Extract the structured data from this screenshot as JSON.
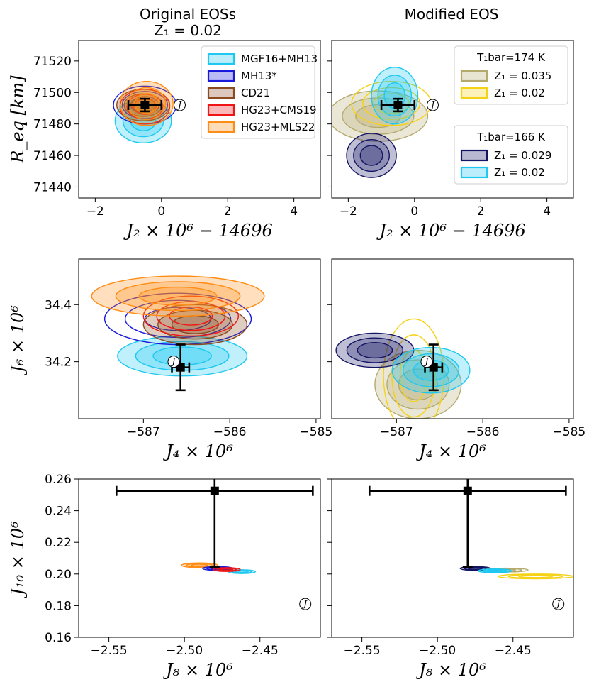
{
  "column_titles": {
    "left": "Original EOSs",
    "left_sub": "Z₁ = 0.02",
    "right": "Modified EOS"
  },
  "jupiter_symbol": "J",
  "chart_data": [
    {
      "type": "contour",
      "panel": "top-left",
      "xlabel": "J₂ × 10⁶ − 14696",
      "ylabel": "R_eq [km]",
      "xlim": [
        -2.5,
        4.8
      ],
      "ylim": [
        71433,
        71533
      ],
      "xticks": [
        -2,
        0,
        2,
        4
      ],
      "xtick_labels": [
        "−2",
        "0",
        "2",
        "4"
      ],
      "yticks": [
        71440,
        71460,
        71480,
        71500,
        71520
      ],
      "ytick_labels": [
        "71440",
        "71460",
        "71480",
        "71500",
        "71520"
      ],
      "observation": {
        "x": -0.5,
        "y": 71492,
        "xerr": 0.5,
        "yerr": 4
      },
      "jupiter_marker": {
        "x": 0.55,
        "y": 71492
      },
      "legend": {
        "title": "",
        "position": "top-right",
        "entries": [
          {
            "label": "MGF16+MH13",
            "color": "#1ec8f0"
          },
          {
            "label": "MH13*",
            "color": "#1a1adc"
          },
          {
            "label": "CD21",
            "color": "#8b4a20"
          },
          {
            "label": "HG23+CMS19",
            "color": "#f01414"
          },
          {
            "label": "HG23+MLS22",
            "color": "#ff8c14"
          }
        ]
      },
      "series": [
        {
          "name": "MGF16+MH13",
          "color": "#1ec8f0",
          "fill": true,
          "center": [
            -0.55,
            71482
          ],
          "spread": [
            0.85,
            14
          ]
        },
        {
          "name": "MH13*",
          "color": "#1a1adc",
          "fill": false,
          "center": [
            -0.5,
            71492
          ],
          "spread": [
            0.95,
            12
          ]
        },
        {
          "name": "CD21",
          "color": "#8b4a20",
          "fill": true,
          "center": [
            -0.55,
            71492
          ],
          "spread": [
            0.8,
            10
          ]
        },
        {
          "name": "HG23+CMS19",
          "color": "#f01414",
          "fill": false,
          "center": [
            -0.5,
            71491
          ],
          "spread": [
            0.75,
            11
          ]
        },
        {
          "name": "HG23+MLS22",
          "color": "#ff8c14",
          "fill": true,
          "center": [
            -0.45,
            71493
          ],
          "spread": [
            0.8,
            14
          ]
        }
      ]
    },
    {
      "type": "contour",
      "panel": "top-right",
      "xlabel": "J₂ × 10⁶ − 14696",
      "ylabel": "",
      "xlim": [
        -2.5,
        4.8
      ],
      "ylim": [
        71433,
        71533
      ],
      "xticks": [
        -2,
        0,
        2,
        4
      ],
      "xtick_labels": [
        "−2",
        "0",
        "2",
        "4"
      ],
      "observation": {
        "x": -0.5,
        "y": 71492,
        "xerr": 0.5,
        "yerr": 4
      },
      "jupiter_marker": {
        "x": 0.55,
        "y": 71492
      },
      "legends": [
        {
          "title": "T₁bar=174 K",
          "position": "top-right",
          "entries": [
            {
              "label": "Z₁ = 0.035",
              "color": "#b4aa6e"
            },
            {
              "label": "Z₁ = 0.02",
              "color": "#f5d214"
            }
          ]
        },
        {
          "title": "T₁bar=166 K",
          "position": "center-right",
          "entries": [
            {
              "label": "Z₁ = 0.029",
              "color": "#141464"
            },
            {
              "label": "Z₁ = 0.02",
              "color": "#1ec8f0"
            }
          ]
        }
      ],
      "series": [
        {
          "name": "Z₁ = 0.035 (174 K)",
          "color": "#b4aa6e",
          "fill": true,
          "center": [
            -1.1,
            71485
          ],
          "spread": [
            1.5,
            16
          ]
        },
        {
          "name": "Z₁ = 0.02 (174 K)",
          "color": "#f5d214",
          "fill": false,
          "center": [
            -0.7,
            71493
          ],
          "spread": [
            1.2,
            14
          ]
        },
        {
          "name": "Z₁ = 0.029 (166 K)",
          "color": "#141464",
          "fill": true,
          "center": [
            -1.3,
            71460
          ],
          "spread": [
            0.75,
            14
          ]
        },
        {
          "name": "Z₁ = 0.02 (166 K)",
          "color": "#1ec8f0",
          "fill": true,
          "center": [
            -0.6,
            71498
          ],
          "spread": [
            0.7,
            18
          ]
        }
      ]
    },
    {
      "type": "contour",
      "panel": "middle-left",
      "xlabel": "J₄ × 10⁶",
      "ylabel": "J₆ × 10⁶",
      "xlim": [
        -587.75,
        -584.95
      ],
      "ylim": [
        34.0,
        34.56
      ],
      "xticks": [
        -587,
        -586,
        -585
      ],
      "xtick_labels": [
        "−587",
        "−586",
        "−585"
      ],
      "yticks": [
        34.2,
        34.4
      ],
      "ytick_labels": [
        "34.2",
        "34.4"
      ],
      "observation": {
        "x": -586.57,
        "y": 34.18,
        "xerr": 0.1,
        "yerr": 0.08
      },
      "jupiter_marker": {
        "x": -586.65,
        "y": 34.2
      },
      "series": [
        {
          "name": "MGF16+MH13",
          "color": "#1ec8f0",
          "fill": true,
          "center": [
            -586.55,
            34.22
          ],
          "spread": [
            0.75,
            0.07
          ]
        },
        {
          "name": "MH13*",
          "color": "#1a1adc",
          "fill": false,
          "center": [
            -586.6,
            34.35
          ],
          "spread": [
            0.85,
            0.09
          ]
        },
        {
          "name": "CD21",
          "color": "#8b4a20",
          "fill": true,
          "center": [
            -586.4,
            34.33
          ],
          "spread": [
            0.6,
            0.07
          ]
        },
        {
          "name": "HG23+CMS19",
          "color": "#f01414",
          "fill": false,
          "center": [
            -586.45,
            34.36
          ],
          "spread": [
            0.55,
            0.07
          ]
        },
        {
          "name": "HG23+MLS22",
          "color": "#ff8c14",
          "fill": true,
          "center": [
            -586.6,
            34.43
          ],
          "spread": [
            1.0,
            0.07
          ]
        }
      ]
    },
    {
      "type": "contour",
      "panel": "middle-right",
      "xlabel": "J₄ × 10⁶",
      "ylabel": "",
      "xlim": [
        -587.75,
        -584.95
      ],
      "ylim": [
        34.0,
        34.56
      ],
      "xticks": [
        -587,
        -586,
        -585
      ],
      "xtick_labels": [
        "−587",
        "−586",
        "−585"
      ],
      "observation": {
        "x": -586.57,
        "y": 34.18,
        "xerr": 0.1,
        "yerr": 0.08
      },
      "jupiter_marker": {
        "x": -586.65,
        "y": 34.2
      },
      "series": [
        {
          "name": "Z₁ = 0.035 (174 K)",
          "color": "#b4aa6e",
          "fill": true,
          "center": [
            -586.75,
            34.12
          ],
          "spread": [
            0.5,
            0.12
          ]
        },
        {
          "name": "Z₁ = 0.02 (174 K)",
          "color": "#f5d214",
          "fill": false,
          "center": [
            -586.8,
            34.15
          ],
          "spread": [
            0.35,
            0.2
          ]
        },
        {
          "name": "Z₁ = 0.029 (166 K)",
          "color": "#141464",
          "fill": true,
          "center": [
            -587.25,
            34.24
          ],
          "spread": [
            0.45,
            0.06
          ]
        },
        {
          "name": "Z₁ = 0.02 (166 K)",
          "color": "#1ec8f0",
          "fill": true,
          "center": [
            -586.6,
            34.17
          ],
          "spread": [
            0.45,
            0.08
          ]
        }
      ]
    },
    {
      "type": "contour",
      "panel": "bottom-left",
      "xlabel": "J₈ × 10⁶",
      "ylabel": "J₁₀ × 10⁶",
      "xlim": [
        -2.57,
        -2.41
      ],
      "ylim": [
        0.16,
        0.26
      ],
      "xticks": [
        -2.55,
        -2.5,
        -2.45
      ],
      "xtick_labels": [
        "−2.55",
        "−2.50",
        "−2.45"
      ],
      "yticks": [
        0.16,
        0.18,
        0.2,
        0.22,
        0.24,
        0.26
      ],
      "ytick_labels": [
        "0.16",
        "0.18",
        "0.20",
        "0.22",
        "0.24",
        "0.26"
      ],
      "observation": {
        "x": -2.48,
        "y": 0.2525,
        "xerr": 0.065,
        "yerr": 0.048
      },
      "jupiter_marker": {
        "x": -2.42,
        "y": 0.181
      },
      "series": [
        {
          "name": "HG23+MLS22",
          "color": "#ff8c14",
          "fill": true,
          "center": [
            -2.49,
            0.2055
          ],
          "spread": [
            0.012,
            0.0015
          ]
        },
        {
          "name": "MGF16+MH13",
          "color": "#1ec8f0",
          "fill": true,
          "center": [
            -2.462,
            0.2015
          ],
          "spread": [
            0.009,
            0.0012
          ]
        },
        {
          "name": "MH13*",
          "color": "#1a1adc",
          "fill": true,
          "center": [
            -2.478,
            0.2035
          ],
          "spread": [
            0.01,
            0.0012
          ]
        },
        {
          "name": "HG23+CMS19",
          "color": "#f01414",
          "fill": true,
          "center": [
            -2.472,
            0.2028
          ],
          "spread": [
            0.009,
            0.0012
          ]
        }
      ]
    },
    {
      "type": "contour",
      "panel": "bottom-right",
      "xlabel": "J₈ × 10⁶",
      "ylabel": "",
      "xlim": [
        -2.57,
        -2.41
      ],
      "ylim": [
        0.16,
        0.26
      ],
      "xticks": [
        -2.55,
        -2.5,
        -2.45
      ],
      "xtick_labels": [
        "−2.55",
        "−2.50",
        "−2.45"
      ],
      "observation": {
        "x": -2.48,
        "y": 0.2525,
        "xerr": 0.065,
        "yerr": 0.048
      },
      "jupiter_marker": {
        "x": -2.42,
        "y": 0.181
      },
      "series": [
        {
          "name": "Z₁ = 0.02 (174 K)",
          "color": "#f5d214",
          "fill": false,
          "center": [
            -2.435,
            0.1985
          ],
          "spread": [
            0.025,
            0.0015
          ]
        },
        {
          "name": "Z₁ = 0.035 (174 K)",
          "color": "#b4aa6e",
          "fill": false,
          "center": [
            -2.455,
            0.2025
          ],
          "spread": [
            0.015,
            0.0012
          ]
        },
        {
          "name": "Z₁ = 0.029 (166 K)",
          "color": "#141464",
          "fill": true,
          "center": [
            -2.475,
            0.2035
          ],
          "spread": [
            0.01,
            0.0012
          ]
        },
        {
          "name": "Z₁ = 0.02 (166 K)",
          "color": "#1ec8f0",
          "fill": true,
          "center": [
            -2.462,
            0.202
          ],
          "spread": [
            0.011,
            0.0012
          ]
        }
      ]
    }
  ]
}
